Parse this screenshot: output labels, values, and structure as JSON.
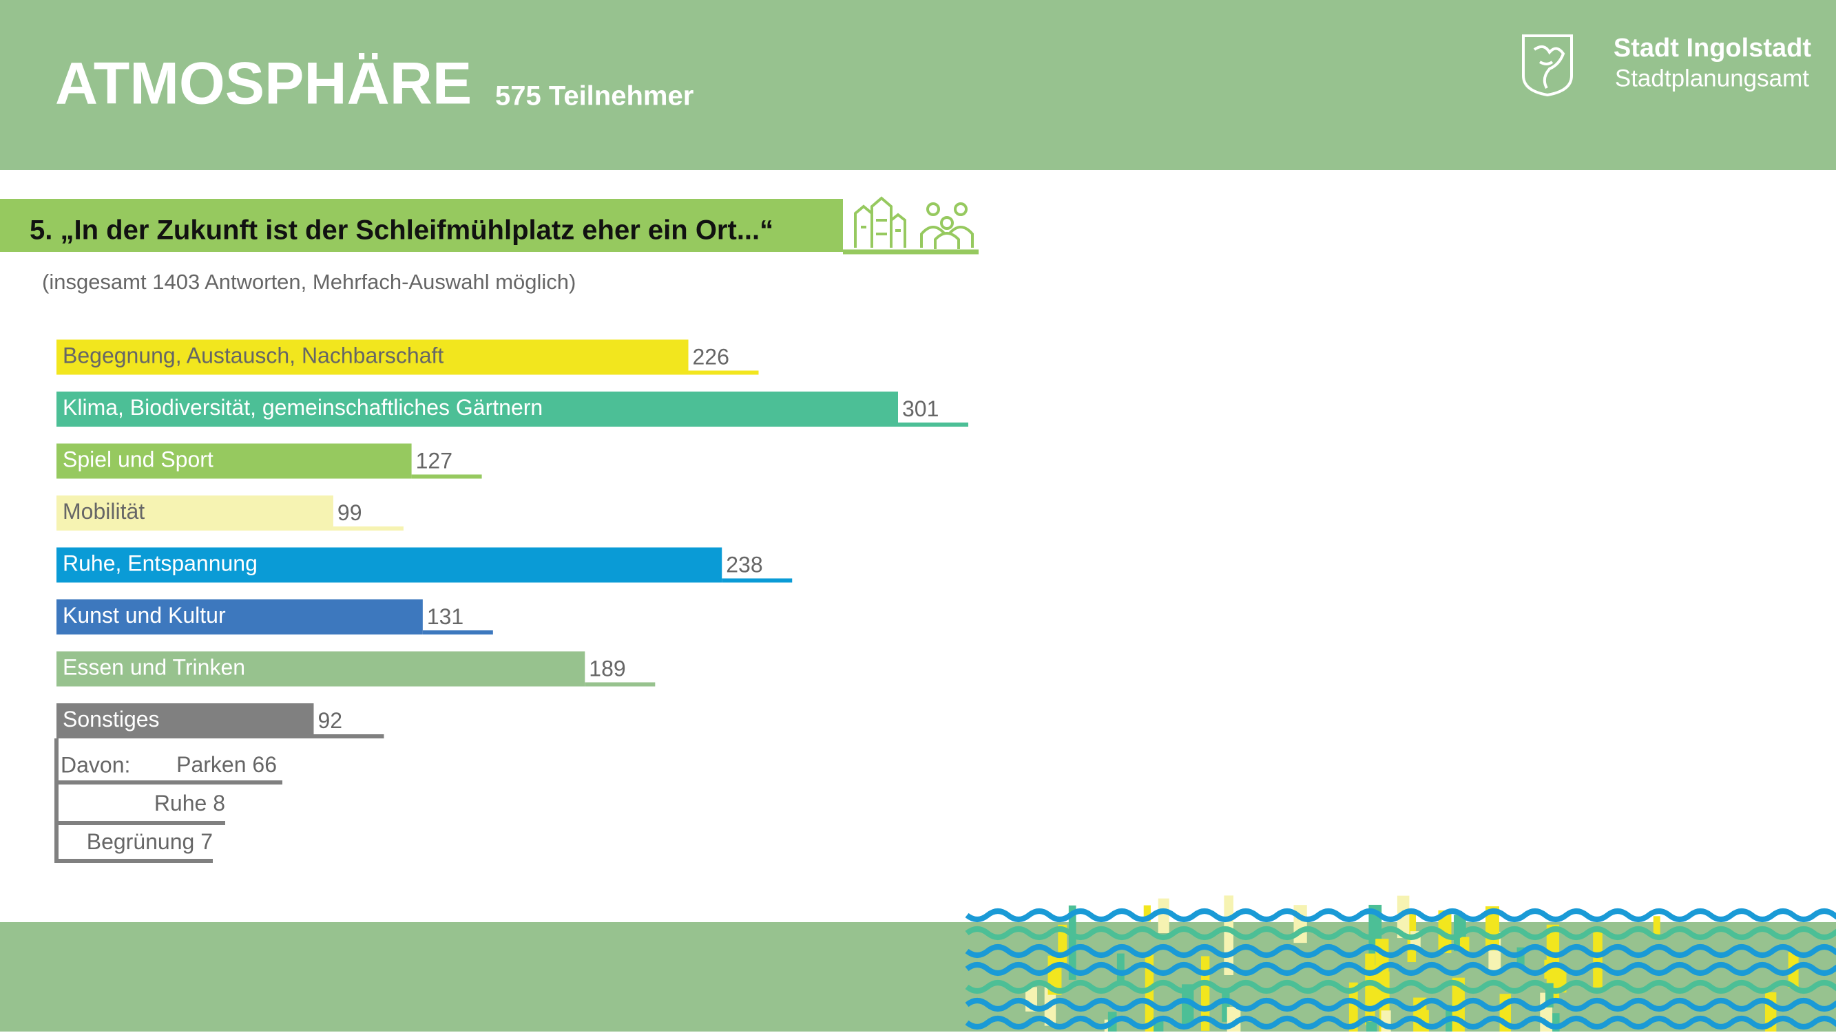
{
  "header": {
    "title": "ATMOSPHÄRE",
    "participants": "575 Teilnehmer",
    "org": "Stadt Ingolstadt",
    "department": "Stadtplanungsamt"
  },
  "chart_data": {
    "type": "bar",
    "orientation": "horizontal",
    "title": "5. „In der Zukunft ist der Schleifmühlplatz eher ein Ort...“",
    "subtitle": "(insgesamt 1403 Antworten, Mehrfach-Auswahl möglich)",
    "categories": [
      "Begegnung, Austausch, Nachbarschaft",
      "Klima, Biodiversität, gemeinschaftliches Gärtnern",
      "Spiel und Sport",
      "Mobilität",
      "Ruhe, Entspannung",
      "Kunst und Kultur",
      "Essen und Trinken",
      "Sonstiges"
    ],
    "values": [
      226,
      301,
      127,
      99,
      238,
      131,
      189,
      92
    ],
    "colors": [
      "#f2e61e",
      "#4cbf96",
      "#96c95f",
      "#f6f3b2",
      "#0a9bd6",
      "#3d78be",
      "#97c28e",
      "#808080"
    ],
    "breakdown": {
      "label": "Davon:",
      "items": [
        {
          "name": "Parken",
          "value": 66
        },
        {
          "name": "Ruhe",
          "value": 8
        },
        {
          "name": "Begrünung",
          "value": 7
        }
      ]
    }
  }
}
